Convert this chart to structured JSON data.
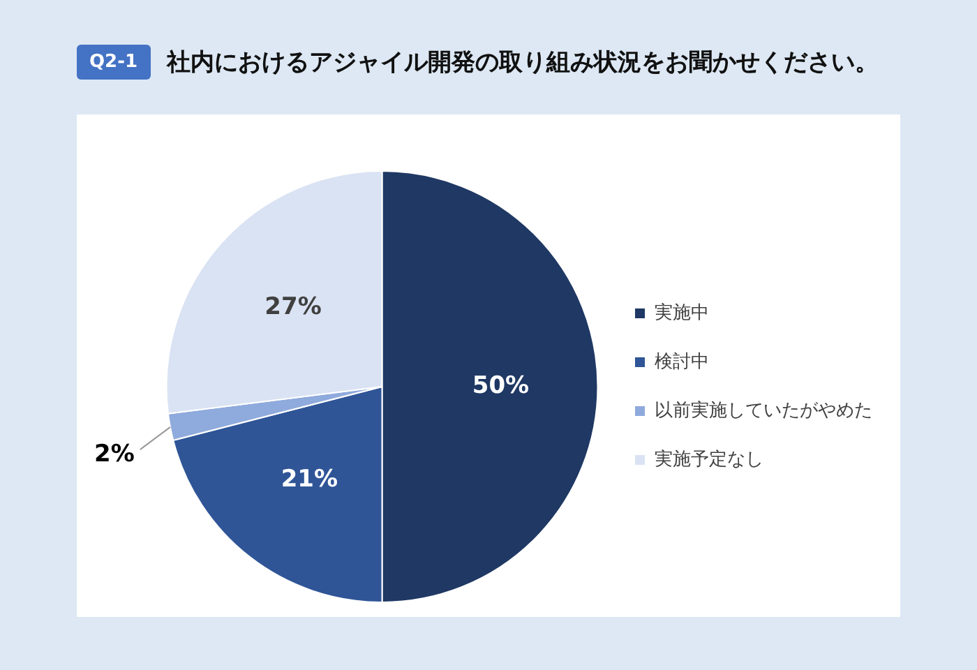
{
  "chart_data": {
    "type": "pie",
    "title": "社内におけるアジャイル開発の取り組み状況をお聞かせください。",
    "annotations": [
      "Q2-1"
    ],
    "categories": [
      "実施中",
      "検討中",
      "以前実施していたがやめた",
      "実施予定なし"
    ],
    "values": [
      50,
      21,
      2,
      27
    ],
    "value_labels": [
      "50%",
      "21%",
      "2%",
      "27%"
    ],
    "colors": [
      "#1f3864",
      "#2f5597",
      "#8faadc",
      "#dae3f3"
    ],
    "legend": "right"
  }
}
